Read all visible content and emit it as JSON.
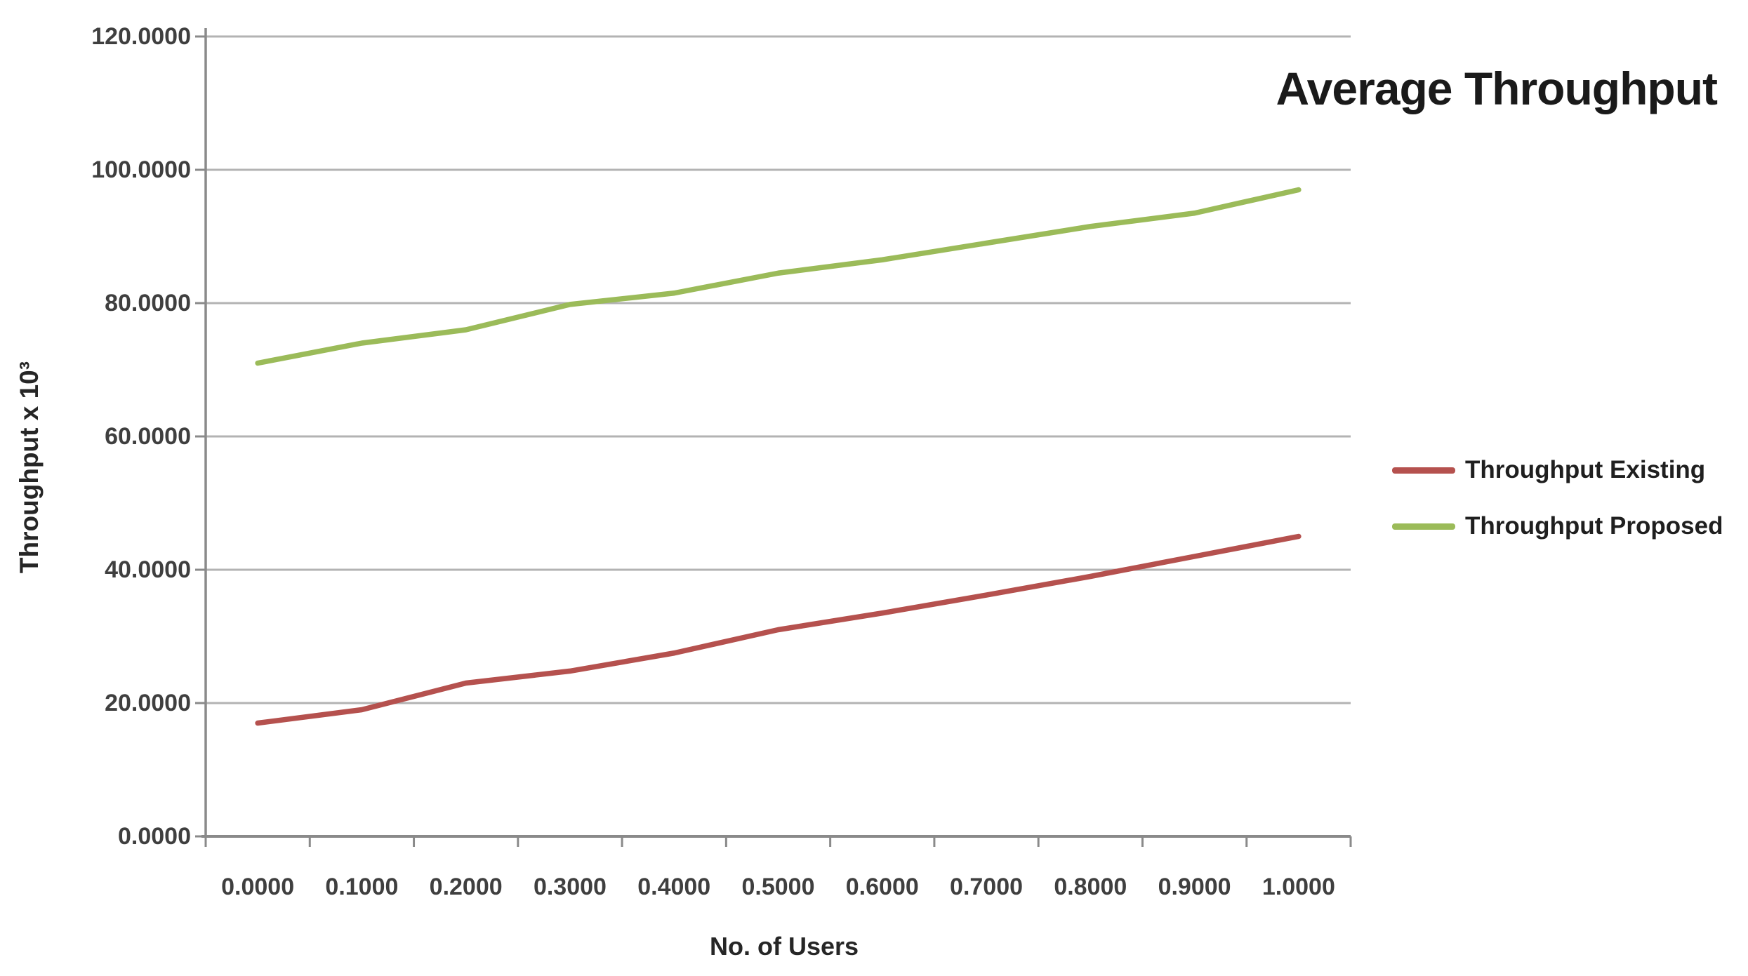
{
  "chart": {
    "title": "Average Throughput",
    "xlabel": "No. of Users",
    "ylabel": "Throughput x 10³"
  },
  "chart_data": {
    "type": "line",
    "title": "Average Throughput",
    "xlabel": "No. of Users",
    "ylabel": "Throughput x 10³",
    "x": [
      0.0,
      0.1,
      0.2,
      0.3,
      0.4,
      0.5,
      0.6,
      0.7,
      0.8,
      0.9,
      1.0
    ],
    "x_tick_labels": [
      "0.0000",
      "0.1000",
      "0.2000",
      "0.3000",
      "0.4000",
      "0.5000",
      "0.6000",
      "0.7000",
      "0.8000",
      "0.9000",
      "1.0000"
    ],
    "ylim": [
      0,
      120
    ],
    "y_ticks": [
      0,
      20,
      40,
      60,
      80,
      100,
      120
    ],
    "y_tick_labels": [
      "0.0000",
      "20.0000",
      "40.0000",
      "60.0000",
      "80.0000",
      "100.0000",
      "120.0000"
    ],
    "grid": "horizontal-gridlines-on",
    "legend_position": "right-middle",
    "series": [
      {
        "name": "Throughput Existing",
        "color": "#b5514e",
        "values": [
          17,
          19,
          23,
          24.8,
          27.5,
          31,
          33.5,
          36.2,
          39,
          42,
          45
        ]
      },
      {
        "name": "Throughput Proposed",
        "color": "#9bbb59",
        "values": [
          71,
          74,
          76,
          79.8,
          81.5,
          84.5,
          86.5,
          89,
          91.5,
          93.5,
          97
        ]
      }
    ]
  },
  "colors": {
    "background": "#ffffff",
    "gridline": "#b3b3b3",
    "axis": "#8a8a8a",
    "tick_label_text": "#3f3f3f",
    "title_text": "#1a1a1a"
  }
}
